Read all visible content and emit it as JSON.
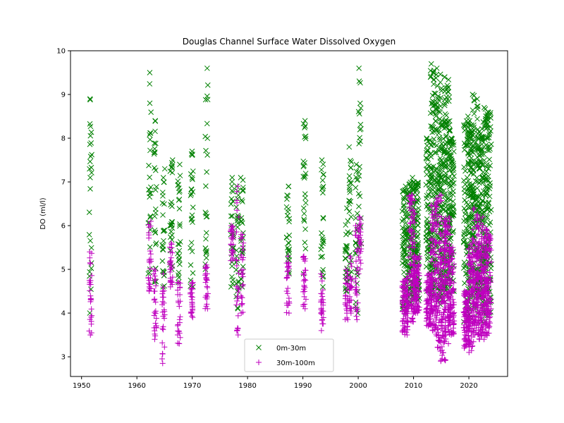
{
  "chart_data": {
    "type": "scatter",
    "title": "Douglas Channel Surface Water Dissolved Oxygen",
    "xlabel": "",
    "ylabel": "DO (ml/l)",
    "xlim": [
      1948,
      2027
    ],
    "ylim": [
      2.55,
      10.0
    ],
    "xticks": [
      1950,
      1960,
      1970,
      1980,
      1990,
      2000,
      2010,
      2020
    ],
    "yticks": [
      3,
      4,
      5,
      6,
      7,
      8,
      9,
      10
    ],
    "grid": false,
    "legend_position": "bottom-center",
    "colors": {
      "surface": "#008000",
      "deep": "#bf00bf"
    },
    "series": [
      {
        "name": "0m-30m",
        "marker": "x",
        "clusters": [
          {
            "year": 1951.6,
            "min": 4.0,
            "max": 8.9
          },
          {
            "year": 1962.3,
            "min": 4.9,
            "max": 9.5
          },
          {
            "year": 1963.3,
            "min": 4.7,
            "max": 8.4
          },
          {
            "year": 1964.8,
            "min": 4.6,
            "max": 7.3
          },
          {
            "year": 1966.2,
            "min": 5.0,
            "max": 7.5
          },
          {
            "year": 1967.6,
            "min": 4.7,
            "max": 7.4
          },
          {
            "year": 1969.9,
            "min": 4.6,
            "max": 7.7
          },
          {
            "year": 1972.6,
            "min": 5.0,
            "max": 9.6
          },
          {
            "year": 1977.2,
            "min": 4.6,
            "max": 7.1
          },
          {
            "year": 1978.2,
            "min": 4.1,
            "max": 6.9
          },
          {
            "year": 1979.0,
            "min": 4.6,
            "max": 7.1
          },
          {
            "year": 1987.3,
            "min": 4.9,
            "max": 6.9
          },
          {
            "year": 1990.3,
            "min": 4.9,
            "max": 8.4
          },
          {
            "year": 1993.5,
            "min": 4.6,
            "max": 7.5
          },
          {
            "year": 1997.9,
            "min": 4.5,
            "max": 6.4
          },
          {
            "year": 1998.6,
            "min": 4.8,
            "max": 7.8
          },
          {
            "year": 1999.7,
            "min": 4.0,
            "max": 7.4
          },
          {
            "year": 2000.3,
            "min": 5.5,
            "max": 9.6
          },
          {
            "year": 2008.5,
            "min": 4.0,
            "max": 6.9
          },
          {
            "year": 2009.7,
            "min": 4.2,
            "max": 7.1
          },
          {
            "year": 2010.5,
            "min": 4.3,
            "max": 7.0
          },
          {
            "year": 2012.8,
            "min": 4.5,
            "max": 8.0
          },
          {
            "year": 2013.6,
            "min": 4.4,
            "max": 9.7
          },
          {
            "year": 2014.5,
            "min": 4.3,
            "max": 9.6
          },
          {
            "year": 2015.3,
            "min": 4.2,
            "max": 8.4
          },
          {
            "year": 2016.1,
            "min": 4.4,
            "max": 9.4
          },
          {
            "year": 2016.8,
            "min": 4.5,
            "max": 8.0
          },
          {
            "year": 2019.6,
            "min": 3.8,
            "max": 8.5
          },
          {
            "year": 2020.4,
            "min": 3.9,
            "max": 8.3
          },
          {
            "year": 2021.2,
            "min": 4.1,
            "max": 9.0
          },
          {
            "year": 2022.0,
            "min": 4.0,
            "max": 8.2
          },
          {
            "year": 2022.8,
            "min": 3.8,
            "max": 8.7
          },
          {
            "year": 2023.5,
            "min": 4.0,
            "max": 8.6
          }
        ]
      },
      {
        "name": "30m-100m",
        "marker": "+",
        "clusters": [
          {
            "year": 1951.6,
            "min": 3.5,
            "max": 5.4
          },
          {
            "year": 1962.3,
            "min": 4.5,
            "max": 6.1
          },
          {
            "year": 1963.3,
            "min": 3.4,
            "max": 5.0
          },
          {
            "year": 1964.8,
            "min": 2.85,
            "max": 4.9
          },
          {
            "year": 1966.2,
            "min": 4.6,
            "max": 5.6
          },
          {
            "year": 1967.6,
            "min": 3.3,
            "max": 4.7
          },
          {
            "year": 1969.9,
            "min": 3.9,
            "max": 4.7
          },
          {
            "year": 1972.6,
            "min": 4.1,
            "max": 5.1
          },
          {
            "year": 1977.2,
            "min": 5.2,
            "max": 6.0
          },
          {
            "year": 1978.2,
            "min": 3.5,
            "max": 6.9
          },
          {
            "year": 1979.0,
            "min": 4.0,
            "max": 5.8
          },
          {
            "year": 1987.3,
            "min": 4.0,
            "max": 5.3
          },
          {
            "year": 1990.3,
            "min": 4.1,
            "max": 5.3
          },
          {
            "year": 1993.5,
            "min": 3.6,
            "max": 4.9
          },
          {
            "year": 1997.9,
            "min": 3.85,
            "max": 5.0
          },
          {
            "year": 1998.6,
            "min": 4.0,
            "max": 5.3
          },
          {
            "year": 1999.7,
            "min": 3.85,
            "max": 6.0
          },
          {
            "year": 2000.3,
            "min": 4.9,
            "max": 6.2
          },
          {
            "year": 2008.5,
            "min": 3.5,
            "max": 4.8
          },
          {
            "year": 2009.7,
            "min": 3.8,
            "max": 6.7
          },
          {
            "year": 2010.5,
            "min": 4.0,
            "max": 5.3
          },
          {
            "year": 2012.8,
            "min": 3.7,
            "max": 4.9
          },
          {
            "year": 2013.6,
            "min": 3.6,
            "max": 6.5
          },
          {
            "year": 2014.5,
            "min": 3.2,
            "max": 6.7
          },
          {
            "year": 2015.3,
            "min": 2.9,
            "max": 6.0
          },
          {
            "year": 2016.1,
            "min": 3.3,
            "max": 6.2
          },
          {
            "year": 2016.8,
            "min": 3.5,
            "max": 5.5
          },
          {
            "year": 2019.6,
            "min": 3.2,
            "max": 4.5
          },
          {
            "year": 2020.4,
            "min": 3.1,
            "max": 5.6
          },
          {
            "year": 2021.2,
            "min": 3.5,
            "max": 6.4
          },
          {
            "year": 2022.0,
            "min": 3.4,
            "max": 6.2
          },
          {
            "year": 2022.8,
            "min": 3.4,
            "max": 6.0
          },
          {
            "year": 2023.5,
            "min": 3.5,
            "max": 5.8
          }
        ]
      }
    ]
  }
}
